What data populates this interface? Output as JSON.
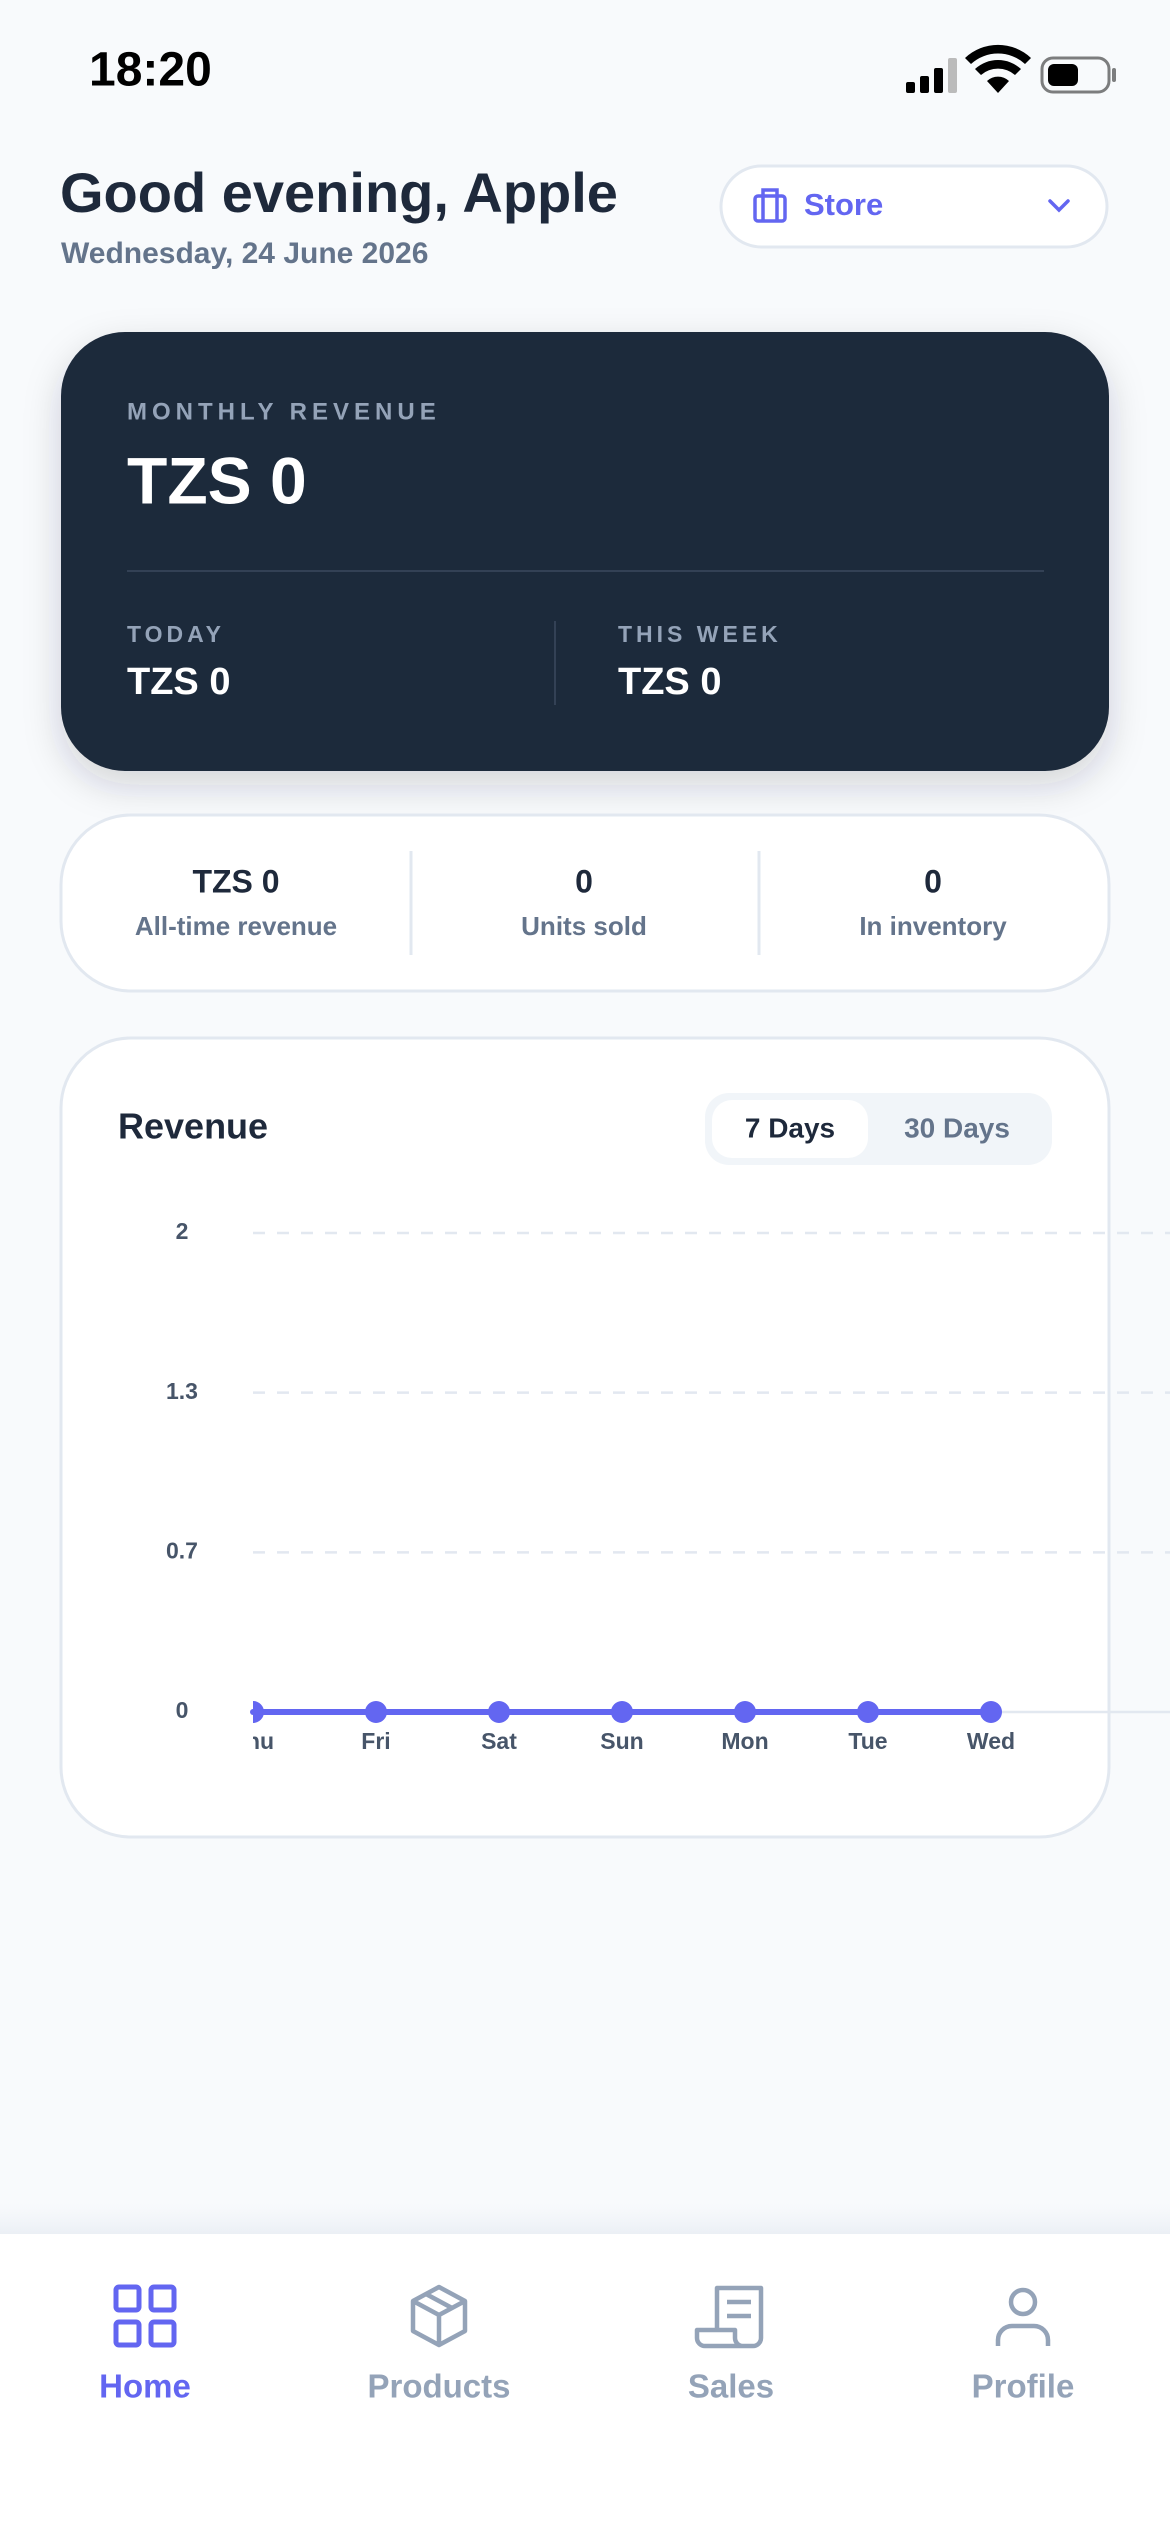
{
  "status_bar": {
    "time": "18:20"
  },
  "header": {
    "greeting": "Good evening, Apple",
    "date": "Wednesday, 24 June 2026",
    "store_selector": "Store"
  },
  "revenue_card": {
    "label": "MONTHLY REVENUE",
    "value": "TZS 0",
    "today_label": "TODAY",
    "today_value": "TZS 0",
    "week_label": "THIS WEEK",
    "week_value": "TZS 0"
  },
  "stats": [
    {
      "value": "TZS 0",
      "label": "All-time revenue"
    },
    {
      "value": "0",
      "label": "Units sold"
    },
    {
      "value": "0",
      "label": "In inventory"
    }
  ],
  "chart_tabs": [
    "7 Days",
    "30 Days"
  ],
  "chart_data": {
    "type": "line",
    "title": "Revenue",
    "categories": [
      "Thu",
      "Fri",
      "Sat",
      "Sun",
      "Mon",
      "Tue",
      "Wed"
    ],
    "series": [
      {
        "name": "Revenue",
        "color": "#6366f1",
        "values": [
          0,
          0,
          0,
          0,
          0,
          0,
          0
        ]
      }
    ],
    "ylim": [
      0,
      2
    ],
    "yticks": [
      0,
      {
        "value": 0.6667,
        "label": "0.7"
      },
      {
        "value": 1.3333,
        "label": "1.3"
      },
      2
    ],
    "grid": true
  },
  "nav": [
    "Home",
    "Products",
    "Sales",
    "Profile"
  ]
}
